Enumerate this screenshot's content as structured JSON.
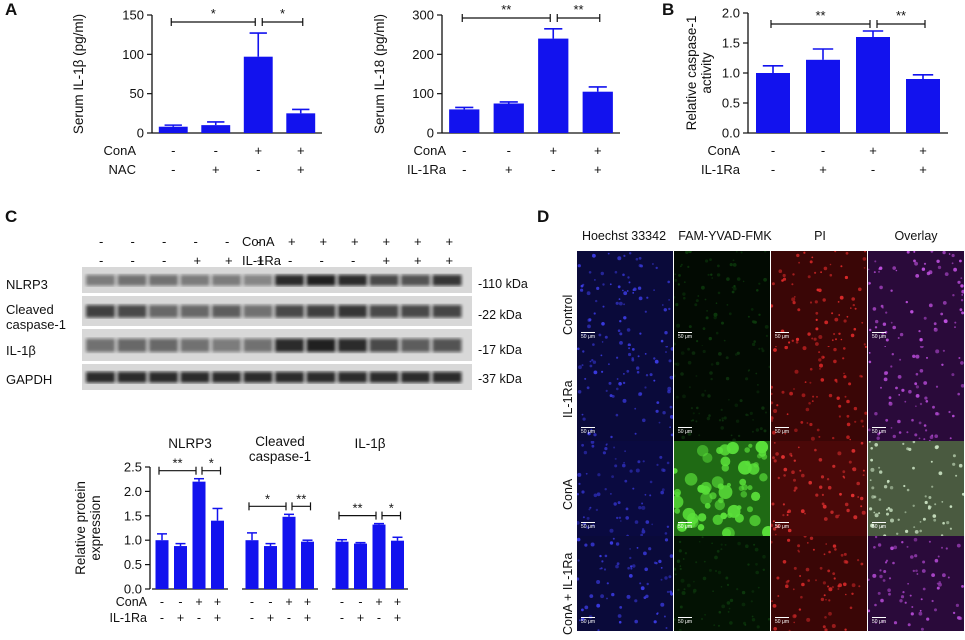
{
  "panels": {
    "A": "A",
    "B": "B",
    "C": "C",
    "D": "D"
  },
  "colors": {
    "bar": "#1212ee",
    "axis": "#111111"
  },
  "chart_data": [
    {
      "type": "bar",
      "panel": "A",
      "ylabel": "Serum IL-1β (pg/ml)",
      "ylim": [
        0,
        150
      ],
      "yticks": [
        "0",
        "50",
        "100",
        "150"
      ],
      "categories": [
        "1",
        "2",
        "3",
        "4"
      ],
      "values": [
        8,
        10,
        97,
        25
      ],
      "errors": [
        2,
        4,
        30,
        5
      ],
      "conditions": [
        {
          "name": "ConA",
          "signs": [
            "-",
            "-",
            "+",
            "+"
          ]
        },
        {
          "name": "NAC",
          "signs": [
            "-",
            "+",
            "-",
            "+"
          ]
        }
      ],
      "brackets": [
        {
          "from": 0,
          "to": 2,
          "label": "*"
        },
        {
          "from": 2,
          "to": 3,
          "label": "*"
        }
      ]
    },
    {
      "type": "bar",
      "panel": "A",
      "ylabel": "Serum IL-18 (pg/ml)",
      "ylim": [
        0,
        300
      ],
      "yticks": [
        "0",
        "100",
        "200",
        "300"
      ],
      "categories": [
        "1",
        "2",
        "3",
        "4"
      ],
      "values": [
        60,
        75,
        240,
        105
      ],
      "errors": [
        5,
        4,
        25,
        12
      ],
      "conditions": [
        {
          "name": "ConA",
          "signs": [
            "-",
            "-",
            "+",
            "+"
          ]
        },
        {
          "name": "IL-1Ra",
          "signs": [
            "-",
            "+",
            "-",
            "+"
          ]
        }
      ],
      "brackets": [
        {
          "from": 0,
          "to": 2,
          "label": "**"
        },
        {
          "from": 2,
          "to": 3,
          "label": "**"
        }
      ]
    },
    {
      "type": "bar",
      "panel": "B",
      "ylabel": "Relative caspase-1 activity",
      "ylabel_lines": [
        "Relative caspase-1",
        "activity"
      ],
      "ylim": [
        0,
        2.0
      ],
      "yticks": [
        "0.0",
        "0.5",
        "1.0",
        "1.5",
        "2.0"
      ],
      "categories": [
        "1",
        "2",
        "3",
        "4"
      ],
      "values": [
        1.0,
        1.22,
        1.6,
        0.9
      ],
      "errors": [
        0.12,
        0.18,
        0.1,
        0.07
      ],
      "conditions": [
        {
          "name": "ConA",
          "signs": [
            "-",
            "-",
            "+",
            "+"
          ]
        },
        {
          "name": "IL-1Ra",
          "signs": [
            "-",
            "+",
            "-",
            "+"
          ]
        }
      ],
      "brackets": [
        {
          "from": 0,
          "to": 2,
          "label": "**"
        },
        {
          "from": 2,
          "to": 3,
          "label": "**"
        }
      ]
    },
    {
      "type": "bar",
      "panel": "C",
      "ylabel": "Relative protein expression",
      "ylabel_lines": [
        "Relative protein",
        "expression"
      ],
      "ylim": [
        0,
        2.5
      ],
      "yticks": [
        "0.0",
        "0.5",
        "1.0",
        "1.5",
        "2.0",
        "2.5"
      ],
      "groups": [
        {
          "title_lines": [
            "NLRP3"
          ],
          "values": [
            1.0,
            0.88,
            2.2,
            1.4
          ],
          "errors": [
            0.13,
            0.05,
            0.06,
            0.25
          ],
          "brackets": [
            {
              "from": 0,
              "to": 2,
              "label": "**"
            },
            {
              "from": 2,
              "to": 3,
              "label": "*"
            }
          ]
        },
        {
          "title_lines": [
            "Cleaved",
            "caspase-1"
          ],
          "values": [
            1.0,
            0.88,
            1.48,
            0.97
          ],
          "errors": [
            0.15,
            0.05,
            0.05,
            0.03
          ],
          "brackets": [
            {
              "from": 0,
              "to": 2,
              "label": "*"
            },
            {
              "from": 2,
              "to": 3,
              "label": "**"
            }
          ]
        },
        {
          "title_lines": [
            "IL-1β"
          ],
          "values": [
            0.97,
            0.93,
            1.32,
            0.99
          ],
          "errors": [
            0.04,
            0.02,
            0.02,
            0.07
          ],
          "brackets": [
            {
              "from": 0,
              "to": 2,
              "label": "**"
            },
            {
              "from": 2,
              "to": 3,
              "label": "*"
            }
          ]
        }
      ],
      "conditions": [
        {
          "name": "ConA",
          "signs": [
            "-",
            "-",
            "+",
            "+"
          ]
        },
        {
          "name": "IL-1Ra",
          "signs": [
            "-",
            "+",
            "-",
            "+"
          ]
        }
      ]
    }
  ],
  "western": {
    "treatments": [
      {
        "name": "ConA",
        "signs": [
          "-",
          "-",
          "-",
          "-",
          "-",
          "-",
          "+",
          "+",
          "+",
          "+",
          "+",
          "+"
        ]
      },
      {
        "name": "IL-1Ra",
        "signs": [
          "-",
          "-",
          "-",
          "+",
          "+",
          "+",
          "-",
          "-",
          "-",
          "+",
          "+",
          "+"
        ]
      }
    ],
    "rows": [
      {
        "label_lines": [
          "NLRP3"
        ],
        "size": "-110 kDa"
      },
      {
        "label_lines": [
          "Cleaved",
          "caspase-1"
        ],
        "size": "-22 kDa"
      },
      {
        "label_lines": [
          "IL-1β"
        ],
        "size": "-17 kDa"
      },
      {
        "label_lines": [
          "GAPDH"
        ],
        "size": "-37 kDa"
      }
    ]
  },
  "micrographs": {
    "columns": [
      "Hoechst 33342",
      "FAM-YVAD-FMK",
      "PI",
      "Overlay"
    ],
    "rows": [
      "Control",
      "IL-1Ra",
      "ConA",
      "ConA + IL-1Ra"
    ],
    "scale_label": "50 μm"
  }
}
